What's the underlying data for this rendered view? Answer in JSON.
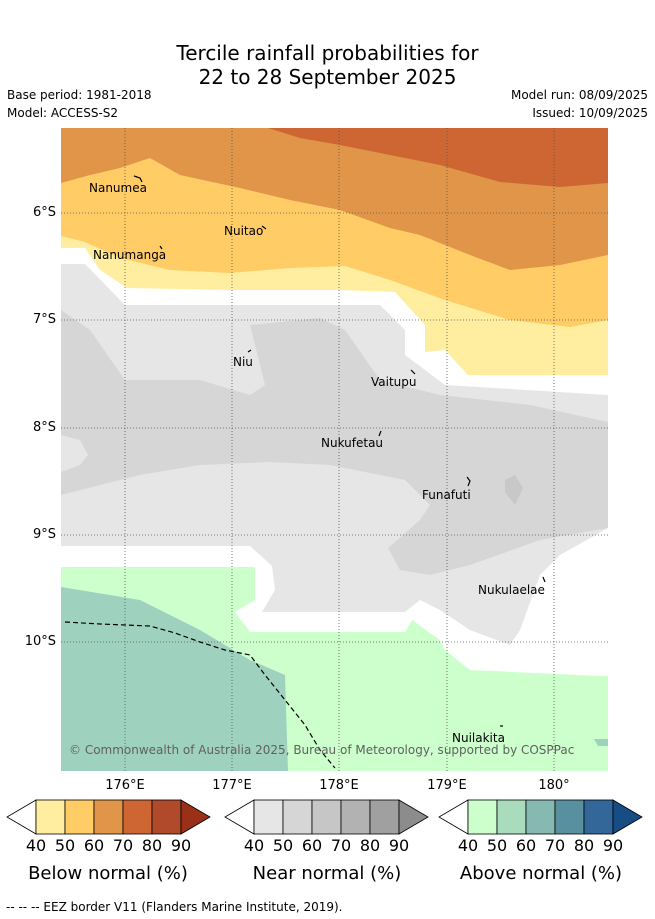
{
  "title_line1": "Tercile rainfall probabilities for",
  "title_line2": "22 to 28 September 2025",
  "base_period": "Base period: 1981-2018",
  "model": "Model: ACCESS-S2",
  "model_run": "Model run: 08/09/2025",
  "issued": "Issued: 10/09/2025",
  "lat_labels": [
    "6°S",
    "7°S",
    "8°S",
    "9°S",
    "10°S"
  ],
  "lon_labels": [
    "176°E",
    "177°E",
    "178°E",
    "179°E",
    "180°"
  ],
  "places": [
    "Nanumea",
    "Nuitao",
    "Nanumanga",
    "Niu",
    "Vaitupu",
    "Nukufetau",
    "Funafuti",
    "Nukulaelae",
    "Nuilakita"
  ],
  "copyright": "© Commonwealth of Australia 2025, Bureau of Meteorology, supported by COSPPac",
  "colorbars": [
    {
      "title": "Below normal (%)",
      "ticks": [
        "40",
        "50",
        "60",
        "70",
        "80",
        "90"
      ],
      "colors": [
        "#ffeea0",
        "#ffcc66",
        "#e09548",
        "#cd6632",
        "#b04a2a",
        "#9a3018"
      ]
    },
    {
      "title": "Near normal (%)",
      "ticks": [
        "40",
        "50",
        "60",
        "70",
        "80",
        "90"
      ],
      "colors": [
        "#e6e6e6",
        "#d6d6d6",
        "#c6c6c6",
        "#b2b2b2",
        "#a0a0a0",
        "#8c8c8c"
      ]
    },
    {
      "title": "Above normal (%)",
      "ticks": [
        "40",
        "50",
        "60",
        "70",
        "80",
        "90"
      ],
      "colors": [
        "#ccffcc",
        "#a8dcbc",
        "#86b9b2",
        "#5890a0",
        "#336699",
        "#174d85"
      ]
    }
  ],
  "footnote": "-- -- -- EEZ border V11 (Flanders Marine Institute, 2019)."
}
